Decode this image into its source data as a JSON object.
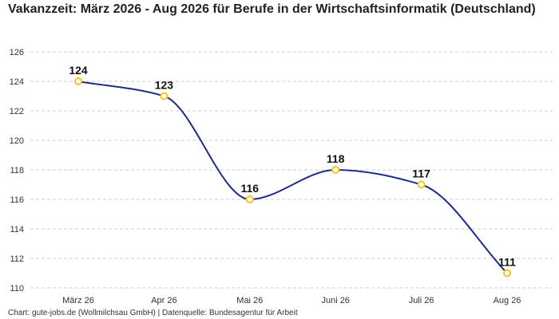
{
  "chart_data": {
    "type": "line",
    "title": "Vakanzzeit: März 2026 - Aug 2026 für Berufe in der Wirtschaftsinformatik (Deutschland)",
    "categories": [
      "März 26",
      "Apr 26",
      "Mai 26",
      "Juni 26",
      "Juli 26",
      "Aug 26"
    ],
    "series": [
      {
        "values": [
          124,
          123,
          116,
          118,
          117,
          111
        ]
      }
    ],
    "value_labels": [
      "124",
      "123",
      "116",
      "118",
      "117",
      "111"
    ],
    "yticks": [
      110,
      112,
      114,
      116,
      118,
      120,
      122,
      124,
      126
    ],
    "ylim": [
      110,
      126
    ],
    "grid": true,
    "line_color": "#1f2d8a",
    "marker_color": "#f5c518",
    "grid_color": "#cccccc"
  },
  "footer": {
    "source": "Chart: gute-jobs.de (Wollmilchsau GmbH) | Datenquelle: Bundesagentur für Arbeit"
  }
}
